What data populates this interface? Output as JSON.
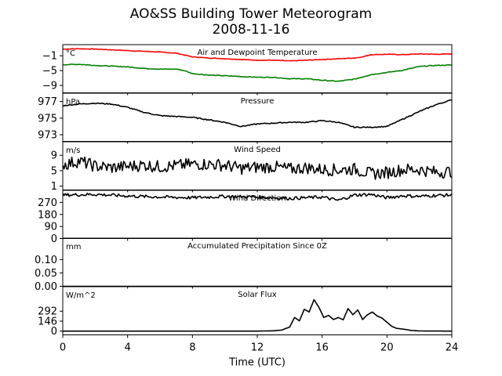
{
  "header": {
    "title": "AO&SS Building Tower Meteorogram",
    "date": "2008-11-16"
  },
  "xaxis": {
    "label": "Time (UTC)",
    "ticks": [
      0,
      4,
      8,
      12,
      16,
      20,
      24
    ],
    "range": [
      0,
      24
    ]
  },
  "colors": {
    "air": "#ff0000",
    "dewpoint": "#008000",
    "black": "#000000"
  },
  "chart_data": [
    {
      "type": "line",
      "title": "Air and Dewpoint Temperature",
      "unit": "°C",
      "ylim": [
        -11,
        2
      ],
      "yticks": [
        -1,
        -5,
        -9
      ],
      "yticklabels": [
        "−1",
        "−5",
        "−9"
      ],
      "series": [
        {
          "key": "air",
          "color": "#ff0000",
          "x": [
            0,
            1,
            2,
            3,
            4,
            5,
            6,
            7,
            7.5,
            8,
            9,
            10,
            11,
            12,
            13,
            14,
            15,
            16,
            17,
            18,
            18.5,
            19,
            20,
            21,
            22,
            23,
            24
          ],
          "values": [
            0.8,
            0.9,
            0.8,
            0.6,
            0.4,
            0.2,
            0.0,
            -0.3,
            -0.8,
            -1.3,
            -1.6,
            -1.8,
            -2.0,
            -2.2,
            -2.2,
            -2.4,
            -2.2,
            -2.0,
            -1.8,
            -1.6,
            -1.3,
            -0.7,
            -0.6,
            -0.7,
            -0.5,
            -0.6,
            -0.5
          ]
        },
        {
          "key": "dewpoint",
          "color": "#008000",
          "x": [
            0,
            1,
            2,
            3,
            4,
            5,
            6,
            7,
            7.5,
            8,
            9,
            10,
            11,
            12,
            13,
            14,
            15,
            16,
            17,
            18,
            19,
            20,
            21,
            22,
            23,
            24
          ],
          "values": [
            -3.4,
            -3.3,
            -3.6,
            -3.8,
            -4.0,
            -4.4,
            -4.6,
            -4.6,
            -5.0,
            -5.8,
            -6.2,
            -6.4,
            -6.6,
            -6.8,
            -6.8,
            -7.2,
            -7.2,
            -7.6,
            -7.9,
            -7.3,
            -6.1,
            -5.5,
            -4.9,
            -3.9,
            -3.6,
            -3.5
          ]
        }
      ]
    },
    {
      "type": "line",
      "title": "Pressure",
      "unit": "hPa",
      "ylim": [
        972.2,
        978.0
      ],
      "yticks": [
        977,
        975,
        973
      ],
      "yticklabels": [
        "977",
        "975",
        "973"
      ],
      "series": [
        {
          "key": "pressure",
          "color": "#000000",
          "x": [
            0,
            1,
            2,
            3,
            4,
            5,
            6,
            7,
            8,
            9,
            10,
            11,
            12,
            13,
            14,
            15,
            16,
            17,
            18,
            19,
            20,
            21,
            22,
            23,
            24
          ],
          "values": [
            976.5,
            976.7,
            976.8,
            976.7,
            976.3,
            975.7,
            975.3,
            975.2,
            975.1,
            974.8,
            974.5,
            974.0,
            974.3,
            974.4,
            974.5,
            974.5,
            974.7,
            974.5,
            973.9,
            973.9,
            974.0,
            974.9,
            975.8,
            976.6,
            977.2
          ]
        }
      ]
    },
    {
      "type": "line",
      "title": "Wind Speed",
      "unit": "m/s",
      "ylim": [
        0,
        12.5
      ],
      "yticks": [
        9,
        5,
        1
      ],
      "yticklabels": [
        "9",
        "5",
        "1"
      ],
      "series": [
        {
          "key": "wind_speed",
          "color": "#000000",
          "x": [
            0,
            1,
            2,
            3,
            4,
            5,
            6,
            7,
            8,
            9,
            10,
            11,
            12,
            13,
            14,
            15,
            16,
            17,
            18,
            19,
            20,
            21,
            22,
            23,
            24
          ],
          "values": [
            6.5,
            7.5,
            6.2,
            5.8,
            6.1,
            6.5,
            6.0,
            6.3,
            6.7,
            6.7,
            6.4,
            5.6,
            5.9,
            6.0,
            5.4,
            5.8,
            5.3,
            5.2,
            5.4,
            4.2,
            4.5,
            5.3,
            5.3,
            4.6,
            4.8
          ]
        }
      ]
    },
    {
      "type": "line",
      "title": "Wind Direction",
      "unit": "",
      "ylim": [
        0,
        360
      ],
      "yticks": [
        270,
        180,
        90,
        0
      ],
      "yticklabels": [
        "270",
        "180",
        "90",
        "0"
      ],
      "series": [
        {
          "key": "wind_direction",
          "color": "#000000",
          "x": [
            0,
            2,
            4,
            6,
            8,
            10,
            12,
            14,
            16,
            17,
            18,
            19,
            20,
            21,
            22,
            23,
            24
          ],
          "values": [
            325,
            330,
            318,
            310,
            305,
            315,
            310,
            300,
            310,
            285,
            325,
            330,
            305,
            320,
            315,
            322,
            325
          ]
        }
      ]
    },
    {
      "type": "line",
      "title": "Accumulated Precipitation Since 0Z",
      "unit": "mm",
      "ylim": [
        0,
        0.18
      ],
      "yticks": [
        0.1,
        0.05,
        0.0
      ],
      "yticklabels": [
        "0.10",
        "0.05",
        "0.00"
      ],
      "series": [
        {
          "key": "precip",
          "color": "#000000",
          "x": [
            0,
            24
          ],
          "values": [
            0,
            0
          ]
        }
      ]
    },
    {
      "type": "line",
      "title": "Solar Flux",
      "unit": "W/m^2",
      "ylim": [
        -55,
        650
      ],
      "yticks": [
        292,
        146,
        0
      ],
      "yticklabels": [
        "292",
        "146",
        "0"
      ],
      "series": [
        {
          "key": "solar",
          "color": "#000000",
          "x": [
            0,
            12,
            13,
            13.5,
            14,
            14.3,
            14.6,
            14.9,
            15.2,
            15.5,
            15.8,
            16.1,
            16.4,
            16.7,
            17.0,
            17.3,
            17.6,
            17.9,
            18.2,
            18.5,
            18.8,
            19.1,
            19.4,
            19.7,
            20.0,
            20.3,
            20.6,
            21,
            21.5,
            22,
            24
          ],
          "values": [
            0,
            0,
            5,
            15,
            60,
            200,
            150,
            320,
            280,
            460,
            350,
            200,
            230,
            170,
            200,
            165,
            330,
            240,
            310,
            170,
            240,
            280,
            220,
            190,
            130,
            70,
            40,
            30,
            10,
            2,
            0
          ]
        }
      ]
    }
  ]
}
